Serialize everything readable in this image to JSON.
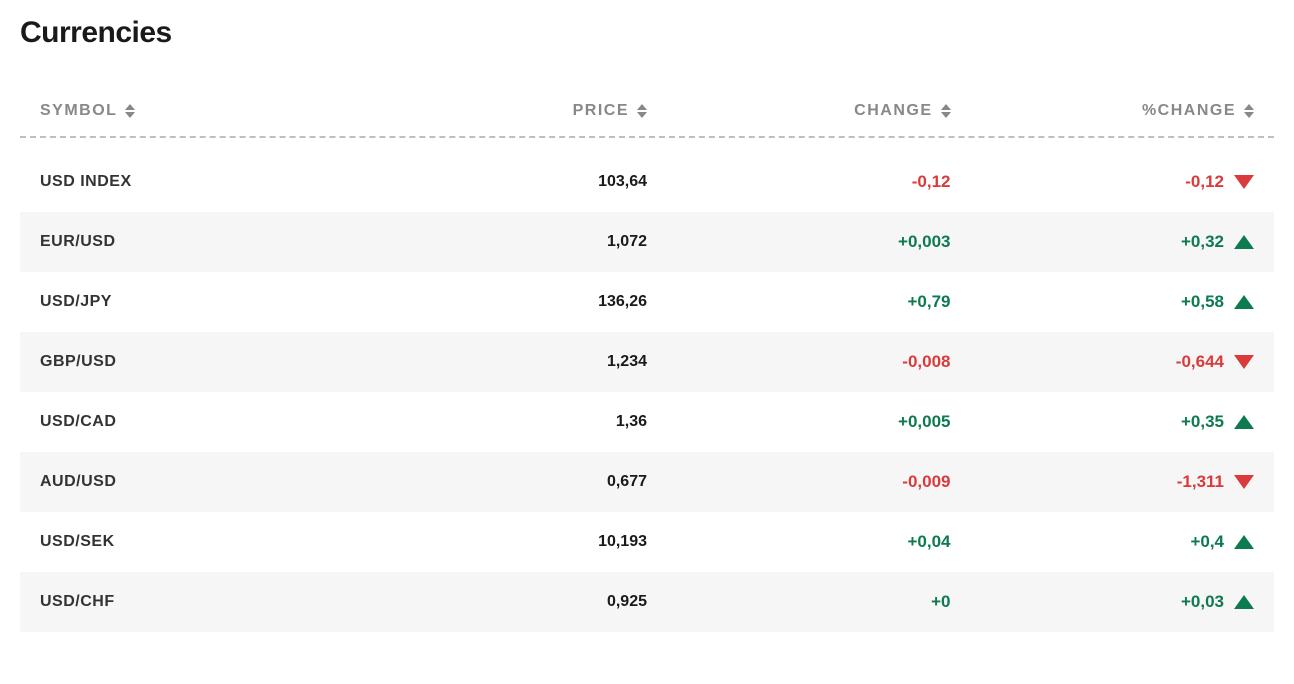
{
  "title": "Currencies",
  "colors": {
    "up": "#0d7a4f",
    "down": "#d93b3b",
    "text": "#1a1a1a",
    "muted": "#888888",
    "row_alt_bg": "#f6f6f6",
    "background": "#ffffff",
    "divider": "#bfbfbf"
  },
  "columns": [
    {
      "label": "SYMBOL",
      "align": "left"
    },
    {
      "label": "PRICE",
      "align": "right"
    },
    {
      "label": "CHANGE",
      "align": "right"
    },
    {
      "label": "%CHANGE",
      "align": "right"
    }
  ],
  "rows": [
    {
      "symbol": "USD INDEX",
      "price": "103,64",
      "change": "-0,12",
      "pct": "-0,12",
      "direction": "down"
    },
    {
      "symbol": "EUR/USD",
      "price": "1,072",
      "change": "+0,003",
      "pct": "+0,32",
      "direction": "up"
    },
    {
      "symbol": "USD/JPY",
      "price": "136,26",
      "change": "+0,79",
      "pct": "+0,58",
      "direction": "up"
    },
    {
      "symbol": "GBP/USD",
      "price": "1,234",
      "change": "-0,008",
      "pct": "-0,644",
      "direction": "down"
    },
    {
      "symbol": "USD/CAD",
      "price": "1,36",
      "change": "+0,005",
      "pct": "+0,35",
      "direction": "up"
    },
    {
      "symbol": "AUD/USD",
      "price": "0,677",
      "change": "-0,009",
      "pct": "-1,311",
      "direction": "down"
    },
    {
      "symbol": "USD/SEK",
      "price": "10,193",
      "change": "+0,04",
      "pct": "+0,4",
      "direction": "up"
    },
    {
      "symbol": "USD/CHF",
      "price": "0,925",
      "change": "+0",
      "pct": "+0,03",
      "direction": "up"
    }
  ]
}
